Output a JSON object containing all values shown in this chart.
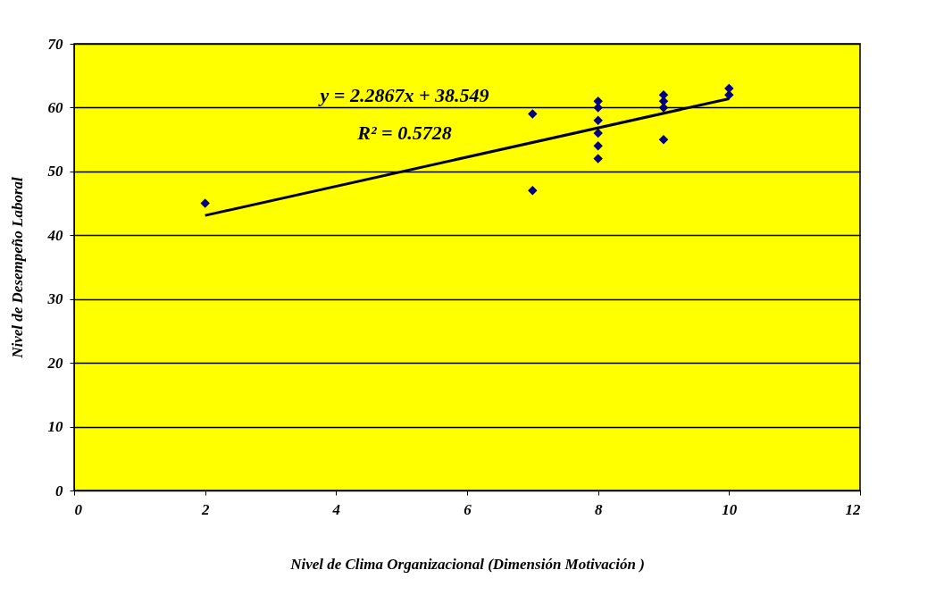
{
  "chart_data": {
    "type": "scatter",
    "xlabel": "Nivel de Clima Organizacional (Dimensión Motivación )",
    "ylabel": "Nivel de Desempeño Laboral",
    "x": [
      2,
      7,
      7,
      8,
      8,
      8,
      8,
      8,
      8,
      9,
      9,
      9,
      9,
      10,
      10
    ],
    "series": [
      {
        "color": "#000080",
        "marker": "diamond",
        "values": [
          45,
          59,
          47,
          61,
          60,
          58,
          56,
          54,
          52,
          62,
          61,
          60,
          55,
          63,
          62
        ]
      },
      {
        "type": "line",
        "color": "#000000",
        "marker": "none",
        "line_style": "solid",
        "x": [
          2,
          10
        ],
        "values": [
          43.1,
          61.4
        ]
      }
    ],
    "annotations": [
      "y = 2.2867x + 38.549",
      "R² = 0.5728"
    ],
    "xlim": [
      0,
      12
    ],
    "xticks": [
      0,
      2,
      4,
      6,
      8,
      10,
      12
    ],
    "ylim": [
      0,
      70
    ],
    "yticks": [
      0,
      10,
      20,
      30,
      40,
      50,
      60,
      70
    ],
    "grid": "y"
  }
}
